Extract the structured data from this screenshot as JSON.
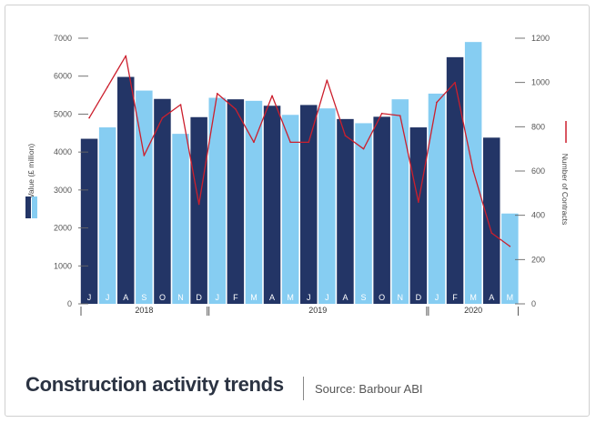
{
  "chart_data": {
    "type": "bar",
    "title": "Construction activity trends",
    "source": "Source: Barbour ABI",
    "categories": [
      "J",
      "J",
      "A",
      "S",
      "O",
      "N",
      "D",
      "J",
      "F",
      "M",
      "A",
      "M",
      "J",
      "J",
      "A",
      "S",
      "O",
      "N",
      "D",
      "J",
      "F",
      "M",
      "A",
      "M"
    ],
    "years": [
      {
        "label": "2018",
        "start": 0,
        "end": 6
      },
      {
        "label": "2019",
        "start": 7,
        "end": 18
      },
      {
        "label": "2020",
        "start": 19,
        "end": 23
      }
    ],
    "ylabel": "Value (£ million)",
    "y2label": "Number of Contracts",
    "ylim": [
      0,
      7000
    ],
    "yticks": [
      0,
      1000,
      2000,
      3000,
      4000,
      5000,
      6000,
      7000
    ],
    "y2lim": [
      0,
      1200
    ],
    "y2ticks": [
      0,
      200,
      400,
      600,
      800,
      1000,
      1200
    ],
    "series": [
      {
        "name": "Value (£ million)",
        "kind": "bar",
        "values": [
          4350,
          4650,
          5980,
          5620,
          5400,
          4480,
          4920,
          5430,
          5390,
          5350,
          5220,
          4980,
          5240,
          5150,
          4870,
          4760,
          4930,
          5390,
          4650,
          5540,
          6500,
          6900,
          4380,
          2380
        ]
      },
      {
        "name": "Number of Contracts",
        "kind": "line",
        "axis": "right",
        "values": [
          840,
          980,
          1120,
          670,
          840,
          900,
          450,
          950,
          880,
          730,
          940,
          730,
          730,
          1010,
          760,
          700,
          860,
          850,
          460,
          910,
          1000,
          600,
          320,
          260
        ]
      }
    ],
    "colors": {
      "bar_dark": "#233566",
      "bar_light": "#86cdf2",
      "line": "#cc1f2d"
    },
    "grid": false
  }
}
